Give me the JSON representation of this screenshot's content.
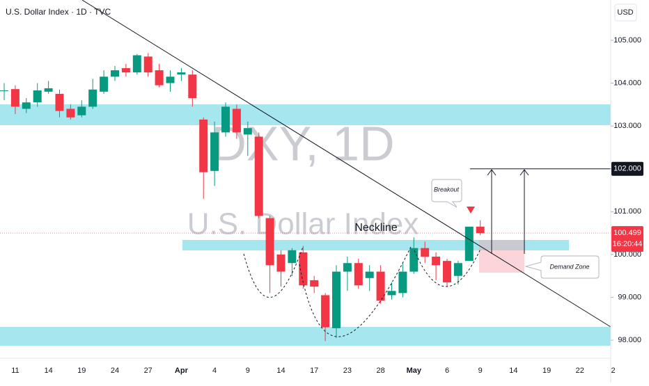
{
  "chart_data": {
    "type": "candlestick",
    "title": "U.S. Dollar Index · 1D · TVC",
    "currency": "USD",
    "watermark": {
      "symbol": "DXY, 1D",
      "name": "U.S. Dollar Index"
    },
    "annotations": {
      "neckline": "Neckline",
      "breakout": "Breakout",
      "demand_zone": "Demand Zone"
    },
    "categories": [
      null,
      "11",
      null,
      null,
      "14",
      null,
      null,
      "19",
      null,
      null,
      "24",
      null,
      null,
      "27",
      null,
      null,
      "Apr",
      null,
      null,
      "4",
      null,
      null,
      "9",
      null,
      null,
      "14",
      null,
      null,
      "17",
      null,
      null,
      "23",
      null,
      null,
      "28",
      null,
      null,
      "May",
      null,
      null,
      "6",
      null,
      null,
      "9",
      null,
      null,
      "14",
      null,
      null,
      "19",
      null,
      null,
      "22",
      null,
      null,
      "2"
    ],
    "open": [
      103.83,
      103.86,
      103.4,
      103.55,
      103.8,
      103.75,
      103.4,
      103.25,
      103.45,
      103.8,
      104.15,
      104.35,
      104.25,
      104.62,
      104.3,
      104.0,
      104.2,
      104.2,
      103.15,
      101.95,
      102.85,
      103.4,
      102.8,
      102.75,
      100.85,
      100.0,
      99.8,
      100.05,
      99.4,
      99.05,
      98.28,
      99.6,
      99.8,
      99.45,
      99.6,
      99.05,
      99.1,
      99.6,
      100.15,
      99.95,
      99.85,
      99.5,
      99.85,
      100.65,
      null,
      null,
      null,
      null,
      null,
      null,
      null,
      null,
      null,
      null,
      null,
      null
    ],
    "high": [
      104.0,
      103.95,
      103.65,
      104.0,
      104.05,
      103.85,
      103.5,
      103.6,
      104.1,
      104.3,
      104.4,
      104.45,
      104.68,
      104.7,
      104.45,
      104.3,
      104.35,
      104.3,
      103.2,
      103.1,
      103.55,
      103.5,
      103.1,
      102.85,
      100.9,
      100.1,
      100.15,
      100.2,
      99.5,
      99.1,
      99.75,
      99.95,
      99.9,
      99.75,
      99.75,
      99.35,
      99.8,
      100.4,
      100.3,
      100.05,
      99.9,
      99.85,
      100.65,
      100.8,
      null,
      null,
      null,
      null,
      null,
      null,
      null,
      null,
      null,
      null,
      null,
      null
    ],
    "low": [
      103.6,
      103.28,
      103.3,
      103.45,
      103.75,
      103.2,
      103.15,
      103.2,
      103.4,
      103.75,
      104.05,
      104.15,
      104.2,
      104.15,
      103.9,
      103.8,
      104.05,
      103.45,
      101.3,
      101.6,
      102.75,
      102.7,
      102.3,
      100.85,
      99.1,
      99.25,
      99.5,
      99.2,
      99.1,
      97.98,
      98.05,
      99.15,
      99.2,
      99.15,
      98.85,
      98.95,
      99.0,
      99.55,
      99.8,
      99.4,
      99.25,
      99.3,
      99.85,
      100.45,
      null,
      null,
      null,
      null,
      null,
      null,
      null,
      null,
      null,
      null,
      null,
      null
    ],
    "close": [
      103.83,
      103.45,
      103.55,
      103.83,
      103.88,
      103.35,
      103.2,
      103.45,
      103.85,
      104.15,
      104.3,
      104.25,
      104.65,
      104.25,
      103.95,
      104.15,
      104.25,
      103.65,
      101.92,
      102.85,
      103.45,
      102.85,
      102.95,
      100.9,
      99.75,
      99.6,
      100.1,
      99.28,
      99.25,
      98.3,
      99.6,
      99.8,
      99.28,
      99.6,
      98.92,
      99.15,
      99.6,
      100.15,
      99.95,
      99.75,
      99.35,
      99.8,
      100.65,
      100.5,
      null,
      null,
      null,
      null,
      null,
      null,
      null,
      null,
      null,
      null,
      null,
      null
    ],
    "up_color": "#089981",
    "down_color": "#f23645",
    "ylim": [
      97.58,
      105.94
    ],
    "yticks": [
      {
        "value": 98,
        "label": "98.000"
      },
      {
        "value": 99,
        "label": "99.000"
      },
      {
        "value": 100,
        "label": "100.000"
      },
      {
        "value": 101,
        "label": "101.000"
      },
      {
        "value": 102,
        "label": "102.000"
      },
      {
        "value": 103,
        "label": "103.000"
      },
      {
        "value": 104,
        "label": "104.000"
      },
      {
        "value": 105,
        "label": "105.000"
      }
    ],
    "target": {
      "value": 102,
      "label": "102.000"
    },
    "last_price": 100.499,
    "countdown": "16:20:44"
  }
}
